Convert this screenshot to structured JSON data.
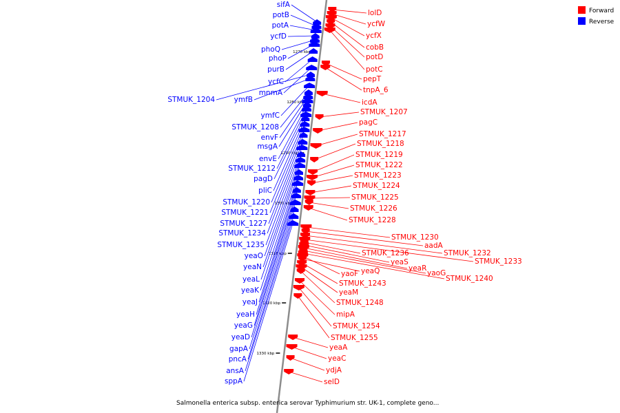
{
  "caption": "Salmonella enterica subsp. enterica serovar Typhimurium str. UK-1, complete geno...",
  "legend": [
    {
      "label": "Forward",
      "color": "#ff0000"
    },
    {
      "label": "Reverse",
      "color": "#0000ff"
    }
  ],
  "colors": {
    "forward": "#ff0000",
    "reverse": "#0000ff",
    "backbone": "#8c8c8c"
  },
  "ticks": [
    "1270 kbp",
    "1280 kbp",
    "1290 kbp",
    "1300 kbp",
    "1310 kbp",
    "1320 kbp",
    "1330 kbp"
  ],
  "reverse_genes": [
    "sifA",
    "potB",
    "potA",
    "ycfD",
    "phoQ",
    "phoP",
    "purB",
    "ycfC",
    "mnmA",
    "STMUK_1204",
    "ymfB",
    "ymfC",
    "STMUK_1208",
    "envF",
    "msgA",
    "envE",
    "STMUK_1212",
    "pagD",
    "pliC",
    "STMUK_1220",
    "STMUK_1221",
    "STMUK_1227",
    "STMUK_1234",
    "STMUK_1235",
    "yeaO",
    "yeaN",
    "yeaL",
    "yeaK",
    "yeaJ",
    "yeaH",
    "yeaG",
    "yeaD",
    "gapA",
    "pncA",
    "ansA",
    "sppA"
  ],
  "forward_genes": [
    "lolD",
    "ycfW",
    "ycfX",
    "cobB",
    "potD",
    "potC",
    "pepT",
    "tnpA_6",
    "icdA",
    "STMUK_1207",
    "pagC",
    "STMUK_1217",
    "STMUK_1218",
    "STMUK_1219",
    "STMUK_1222",
    "STMUK_1223",
    "STMUK_1224",
    "STMUK_1225",
    "STMUK_1226",
    "STMUK_1228",
    "STMUK_1230",
    "aadA",
    "STMUK_1232",
    "STMUK_1233",
    "STMUK_1236",
    "yeaS",
    "yeaR",
    "yaoG",
    "STMUK_1240",
    "yaoF",
    "yeaQ",
    "STMUK_1243",
    "yeaM",
    "STMUK_1248",
    "mipA",
    "STMUK_1254",
    "STMUK_1255",
    "yeaA",
    "yeaC",
    "ydjA",
    "selD"
  ]
}
